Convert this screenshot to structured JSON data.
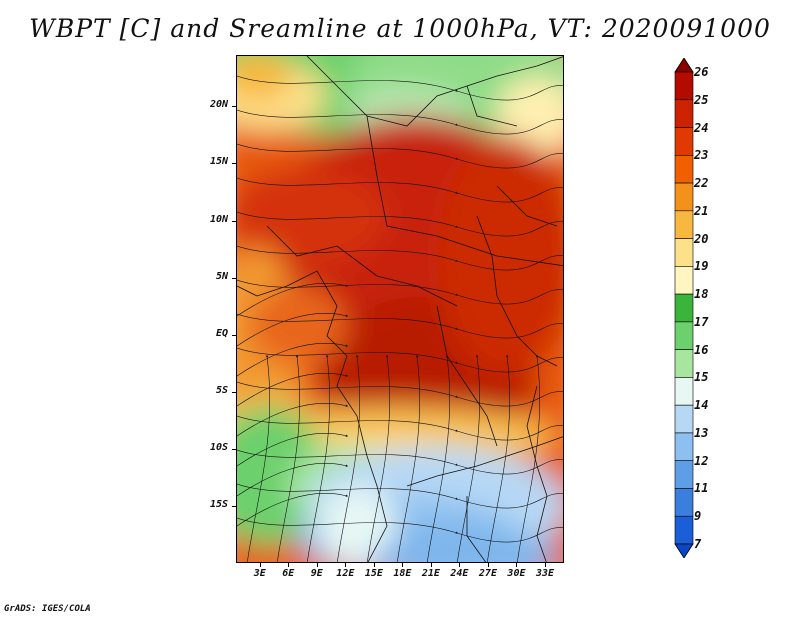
{
  "title": "WBPT [C] and Sreamline at 1000hPa, VT: 2020091000",
  "footer": "GrADS: IGES/COLA",
  "map": {
    "lat_labels": [
      "20N",
      "15N",
      "10N",
      "5N",
      "EQ",
      "5S",
      "10S",
      "15S"
    ],
    "lat_values": [
      20,
      15,
      10,
      5,
      0,
      -5,
      -10,
      -15
    ],
    "lat_range": [
      -20,
      24.5
    ],
    "lon_labels": [
      "3E",
      "6E",
      "9E",
      "12E",
      "15E",
      "18E",
      "21E",
      "24E",
      "27E",
      "30E",
      "33E"
    ],
    "lon_values": [
      3,
      6,
      9,
      12,
      15,
      18,
      21,
      24,
      27,
      30,
      33
    ],
    "lon_range": [
      0.5,
      35
    ]
  },
  "colorbar": {
    "labels": [
      "26",
      "25",
      "24",
      "23",
      "22",
      "21",
      "20",
      "19",
      "18",
      "17",
      "16",
      "15",
      "14",
      "13",
      "12",
      "11",
      "9",
      "7"
    ],
    "colors": [
      "#8b0000",
      "#b30b00",
      "#cc2200",
      "#e03a00",
      "#f06000",
      "#f5901a",
      "#f8b840",
      "#fde08a",
      "#fff5c0",
      "#3ab43a",
      "#6cd06c",
      "#a8e6a0",
      "#e6f7f4",
      "#b6d8f5",
      "#8cc0f0",
      "#5e9ee6",
      "#3a7ee0",
      "#1a5fd8",
      "#0a46c8"
    ]
  }
}
